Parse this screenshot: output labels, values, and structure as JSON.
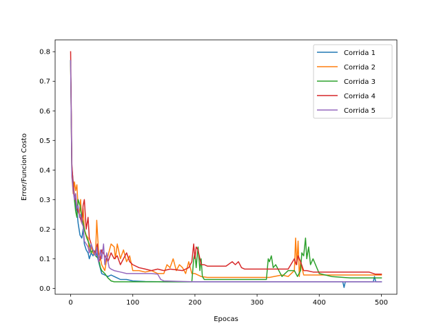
{
  "chart_data": {
    "type": "line",
    "xlabel": "Epocas",
    "ylabel": "Error/Funcion Costo",
    "xlim": [
      -25,
      525
    ],
    "ylim": [
      -0.02,
      0.84
    ],
    "xticks": [
      0,
      100,
      200,
      300,
      400,
      500
    ],
    "yticks": [
      0.0,
      0.1,
      0.2,
      0.3,
      0.4,
      0.5,
      0.6,
      0.7,
      0.8
    ],
    "legend_position": "top-right",
    "grid": false,
    "series": [
      {
        "name": "Corrida 1",
        "color": "#1f77b4",
        "x": [
          0,
          2,
          4,
          6,
          8,
          10,
          12,
          15,
          18,
          20,
          22,
          25,
          28,
          30,
          33,
          36,
          40,
          45,
          50,
          55,
          60,
          65,
          70,
          75,
          80,
          90,
          100,
          120,
          150,
          180,
          200,
          250,
          300,
          350,
          400,
          438,
          440,
          442,
          450,
          487,
          489,
          491,
          500
        ],
        "values": [
          0.77,
          0.41,
          0.36,
          0.31,
          0.28,
          0.26,
          0.22,
          0.18,
          0.17,
          0.2,
          0.15,
          0.13,
          0.12,
          0.1,
          0.12,
          0.11,
          0.13,
          0.09,
          0.05,
          0.045,
          0.04,
          0.045,
          0.04,
          0.035,
          0.03,
          0.03,
          0.025,
          0.023,
          0.022,
          0.022,
          0.022,
          0.022,
          0.022,
          0.022,
          0.022,
          0.022,
          0.003,
          0.022,
          0.022,
          0.022,
          0.04,
          0.022,
          0.022
        ]
      },
      {
        "name": "Corrida 2",
        "color": "#ff7f0e",
        "x": [
          0,
          2,
          4,
          6,
          8,
          10,
          12,
          14,
          16,
          18,
          20,
          22,
          25,
          28,
          30,
          33,
          36,
          40,
          42,
          45,
          48,
          50,
          55,
          58,
          60,
          65,
          70,
          72,
          75,
          80,
          85,
          90,
          95,
          100,
          110,
          120,
          130,
          140,
          150,
          155,
          160,
          165,
          170,
          175,
          180,
          185,
          190,
          195,
          200,
          210,
          220,
          250,
          280,
          300,
          320,
          340,
          350,
          360,
          362,
          364,
          366,
          368,
          370,
          375,
          380,
          400,
          450,
          500
        ],
        "values": [
          0.76,
          0.38,
          0.32,
          0.36,
          0.33,
          0.35,
          0.27,
          0.25,
          0.3,
          0.22,
          0.27,
          0.2,
          0.18,
          0.17,
          0.12,
          0.14,
          0.12,
          0.11,
          0.23,
          0.12,
          0.1,
          0.08,
          0.06,
          0.1,
          0.11,
          0.15,
          0.14,
          0.1,
          0.15,
          0.1,
          0.13,
          0.09,
          0.11,
          0.06,
          0.06,
          0.055,
          0.06,
          0.05,
          0.05,
          0.08,
          0.07,
          0.1,
          0.06,
          0.08,
          0.07,
          0.05,
          0.09,
          0.05,
          0.05,
          0.04,
          0.037,
          0.037,
          0.037,
          0.037,
          0.037,
          0.045,
          0.04,
          0.06,
          0.17,
          0.08,
          0.16,
          0.04,
          0.09,
          0.045,
          0.045,
          0.045,
          0.045,
          0.045
        ]
      },
      {
        "name": "Corrida 3",
        "color": "#2ca02c",
        "x": [
          0,
          2,
          4,
          6,
          8,
          10,
          12,
          15,
          18,
          20,
          23,
          26,
          30,
          33,
          36,
          40,
          45,
          48,
          50,
          55,
          60,
          65,
          70,
          80,
          100,
          150,
          195,
          198,
          200,
          202,
          205,
          208,
          210,
          212,
          215,
          300,
          315,
          318,
          320,
          323,
          326,
          330,
          340,
          350,
          360,
          365,
          370,
          372,
          375,
          378,
          380,
          383,
          386,
          390,
          400,
          420,
          450,
          500
        ],
        "values": [
          0.77,
          0.39,
          0.35,
          0.3,
          0.26,
          0.24,
          0.3,
          0.28,
          0.24,
          0.22,
          0.19,
          0.17,
          0.15,
          0.12,
          0.13,
          0.11,
          0.1,
          0.07,
          0.06,
          0.05,
          0.035,
          0.025,
          0.022,
          0.022,
          0.022,
          0.022,
          0.022,
          0.1,
          0.12,
          0.07,
          0.14,
          0.06,
          0.1,
          0.04,
          0.03,
          0.03,
          0.03,
          0.1,
          0.09,
          0.11,
          0.07,
          0.08,
          0.04,
          0.06,
          0.06,
          0.04,
          0.06,
          0.12,
          0.11,
          0.17,
          0.1,
          0.14,
          0.08,
          0.1,
          0.05,
          0.04,
          0.035,
          0.035
        ]
      },
      {
        "name": "Corrida 4",
        "color": "#d62728",
        "x": [
          0,
          2,
          4,
          6,
          8,
          10,
          12,
          15,
          18,
          20,
          22,
          25,
          28,
          30,
          33,
          36,
          40,
          43,
          45,
          48,
          50,
          55,
          60,
          65,
          70,
          75,
          80,
          85,
          90,
          95,
          100,
          110,
          120,
          130,
          140,
          150,
          160,
          180,
          190,
          195,
          198,
          200,
          202,
          205,
          208,
          210,
          215,
          220,
          250,
          260,
          265,
          270,
          275,
          280,
          300,
          350,
          360,
          363,
          366,
          370,
          375,
          380,
          390,
          400,
          450,
          480,
          490,
          500
        ],
        "values": [
          0.8,
          0.42,
          0.35,
          0.31,
          0.3,
          0.27,
          0.26,
          0.24,
          0.22,
          0.28,
          0.3,
          0.2,
          0.24,
          0.17,
          0.15,
          0.13,
          0.12,
          0.15,
          0.09,
          0.1,
          0.13,
          0.11,
          0.09,
          0.12,
          0.1,
          0.11,
          0.08,
          0.1,
          0.12,
          0.09,
          0.08,
          0.07,
          0.065,
          0.06,
          0.065,
          0.06,
          0.065,
          0.06,
          0.07,
          0.09,
          0.15,
          0.1,
          0.14,
          0.13,
          0.1,
          0.08,
          0.08,
          0.075,
          0.075,
          0.09,
          0.08,
          0.09,
          0.07,
          0.065,
          0.065,
          0.065,
          0.1,
          0.08,
          0.11,
          0.09,
          0.06,
          0.06,
          0.055,
          0.055,
          0.055,
          0.055,
          0.048,
          0.048
        ]
      },
      {
        "name": "Corrida 5",
        "color": "#9467bd",
        "x": [
          0,
          2,
          4,
          6,
          8,
          10,
          12,
          14,
          16,
          18,
          20,
          22,
          25,
          28,
          30,
          33,
          36,
          40,
          42,
          45,
          48,
          50,
          53,
          55,
          58,
          60,
          62,
          65,
          70,
          80,
          90,
          100,
          130,
          140,
          145,
          150,
          200,
          250,
          300,
          350,
          400,
          450,
          500
        ],
        "values": [
          0.77,
          0.38,
          0.33,
          0.3,
          0.32,
          0.27,
          0.28,
          0.24,
          0.25,
          0.22,
          0.21,
          0.16,
          0.15,
          0.14,
          0.12,
          0.15,
          0.13,
          0.11,
          0.14,
          0.09,
          0.13,
          0.1,
          0.15,
          0.08,
          0.12,
          0.09,
          0.07,
          0.065,
          0.06,
          0.055,
          0.05,
          0.05,
          0.05,
          0.048,
          0.03,
          0.025,
          0.022,
          0.022,
          0.022,
          0.022,
          0.022,
          0.022,
          0.022
        ]
      }
    ]
  }
}
